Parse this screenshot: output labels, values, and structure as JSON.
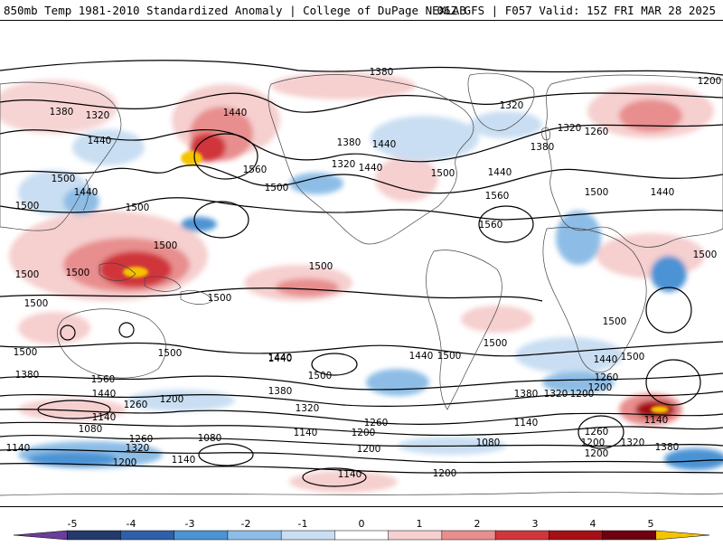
{
  "header": {
    "title_left": "850mb Temp 1981-2010 Standardized Anomaly | College of DuPage NEXLAB",
    "title_right": "06Z GFS | F057 Valid: 15Z FRI MAR 28 2025"
  },
  "colorbar": {
    "tick_labels": [
      "-5",
      "-4",
      "-3",
      "-2",
      "-1",
      "0",
      "1",
      "2",
      "3",
      "4",
      "5"
    ],
    "colors": [
      "#6a3d9a",
      "#233a6b",
      "#2f5fa8",
      "#4b93d4",
      "#8dbde6",
      "#c9def2",
      "#ffffff",
      "#f6cfcf",
      "#e88e8e",
      "#d0363b",
      "#a50f15",
      "#6e0010",
      "#f5c400"
    ]
  },
  "contour_labels": [
    {
      "text": "1380"
    },
    {
      "text": "1320"
    },
    {
      "text": "1440"
    },
    {
      "text": "1500"
    },
    {
      "text": "1440"
    },
    {
      "text": "1500"
    },
    {
      "text": "1500"
    },
    {
      "text": "1440"
    },
    {
      "text": "1380"
    },
    {
      "text": "1560"
    },
    {
      "text": "1500"
    },
    {
      "text": "1380"
    },
    {
      "text": "1440"
    },
    {
      "text": "1320"
    },
    {
      "text": "1440"
    },
    {
      "text": "1500"
    },
    {
      "text": "1560"
    },
    {
      "text": "1440"
    },
    {
      "text": "1560"
    },
    {
      "text": "1320"
    },
    {
      "text": "1380"
    },
    {
      "text": "1320"
    },
    {
      "text": "1260"
    },
    {
      "text": "1200"
    },
    {
      "text": "1500"
    },
    {
      "text": "1440"
    },
    {
      "text": "1500"
    },
    {
      "text": "1500"
    },
    {
      "text": "1500"
    },
    {
      "text": "1500"
    },
    {
      "text": "1500"
    },
    {
      "text": "1500"
    },
    {
      "text": "1500"
    },
    {
      "text": "1500"
    },
    {
      "text": "1500"
    },
    {
      "text": "1500"
    },
    {
      "text": "1500"
    },
    {
      "text": "1500"
    },
    {
      "text": "1440"
    },
    {
      "text": "1380"
    },
    {
      "text": "1560"
    },
    {
      "text": "1440"
    },
    {
      "text": "1260"
    },
    {
      "text": "1200"
    },
    {
      "text": "1140"
    },
    {
      "text": "1080"
    },
    {
      "text": "1260"
    },
    {
      "text": "1320"
    },
    {
      "text": "1140"
    },
    {
      "text": "1200"
    },
    {
      "text": "1080"
    },
    {
      "text": "1140"
    },
    {
      "text": "1440"
    },
    {
      "text": "1380"
    },
    {
      "text": "1320"
    },
    {
      "text": "1140"
    },
    {
      "text": "1200"
    },
    {
      "text": "1260"
    },
    {
      "text": "1140"
    },
    {
      "text": "1200"
    },
    {
      "text": "1380"
    },
    {
      "text": "1320"
    },
    {
      "text": "1200"
    },
    {
      "text": "1440"
    },
    {
      "text": "1260"
    },
    {
      "text": "1200"
    },
    {
      "text": "1140"
    },
    {
      "text": "1200"
    },
    {
      "text": "1320"
    },
    {
      "text": "1380"
    },
    {
      "text": "1260"
    },
    {
      "text": "1200"
    },
    {
      "text": "1140"
    },
    {
      "text": "1200"
    },
    {
      "text": "1080"
    },
    {
      "text": "1500"
    },
    {
      "text": "1440"
    },
    {
      "text": "1500"
    }
  ]
}
